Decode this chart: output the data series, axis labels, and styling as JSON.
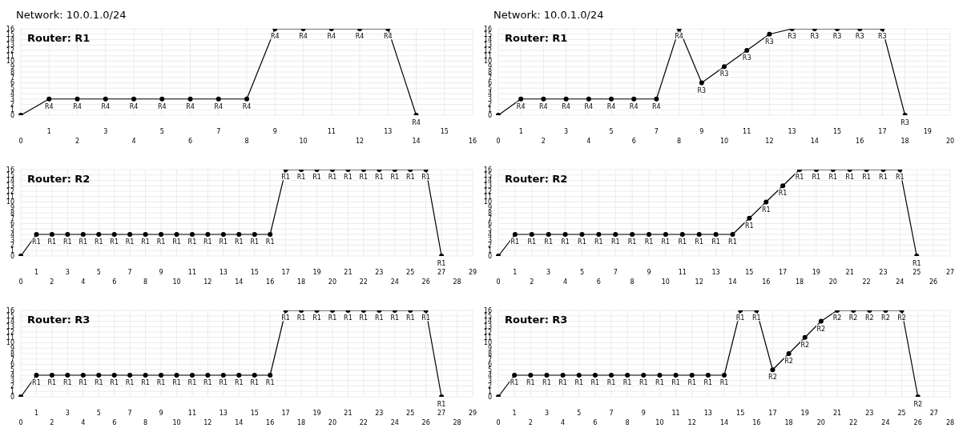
{
  "chart_data": [
    {
      "type": "line",
      "title": "Network: 10.0.1.0/24",
      "subtitle": "Router: R1",
      "grid": true,
      "marker": "circle",
      "ylim": [
        0,
        16
      ],
      "yticks": [
        0,
        1,
        2,
        3,
        4,
        5,
        6,
        7,
        8,
        9,
        10,
        11,
        12,
        13,
        14,
        15,
        16
      ],
      "categories": [
        "0",
        "1",
        "2",
        "3",
        "4",
        "5",
        "6",
        "7",
        "8",
        "9",
        "10",
        "11",
        "12",
        "13",
        "14",
        "15",
        "16"
      ],
      "series": [
        {
          "color": "#000000",
          "values": [
            0,
            3,
            3,
            3,
            3,
            3,
            3,
            3,
            3,
            16,
            16,
            16,
            16,
            16,
            0,
            null,
            null
          ],
          "value_labels": [
            null,
            "R4",
            "R4",
            "R4",
            "R4",
            "R4",
            "R4",
            "R4",
            "R4",
            "R4",
            "R4",
            "R4",
            "R4",
            "R4",
            "R4",
            null,
            null
          ]
        }
      ]
    },
    {
      "type": "line",
      "title": "Network: 10.0.1.0/24",
      "subtitle": "Router: R1",
      "grid": true,
      "marker": "circle",
      "ylim": [
        0,
        16
      ],
      "yticks": [
        0,
        1,
        2,
        3,
        4,
        5,
        6,
        7,
        8,
        9,
        10,
        11,
        12,
        13,
        14,
        15,
        16
      ],
      "categories": [
        "0",
        "1",
        "2",
        "3",
        "4",
        "5",
        "6",
        "7",
        "8",
        "9",
        "10",
        "11",
        "12",
        "13",
        "14",
        "15",
        "16",
        "17",
        "18",
        "19",
        "20"
      ],
      "series": [
        {
          "color": "#000000",
          "values": [
            0,
            3,
            3,
            3,
            3,
            3,
            3,
            3,
            16,
            6,
            9,
            12,
            15,
            16,
            16,
            16,
            16,
            16,
            0,
            null,
            null
          ],
          "value_labels": [
            null,
            "R4",
            "R4",
            "R4",
            "R4",
            "R4",
            "R4",
            "R4",
            "R4",
            "R3",
            "R3",
            "R3",
            "R3",
            "R3",
            "R3",
            "R3",
            "R3",
            "R3",
            "R3",
            null,
            null
          ]
        }
      ]
    },
    {
      "type": "line",
      "subtitle": "Router: R2",
      "grid": true,
      "marker": "circle",
      "ylim": [
        0,
        16
      ],
      "yticks": [
        0,
        1,
        2,
        3,
        4,
        5,
        6,
        7,
        8,
        9,
        10,
        11,
        12,
        13,
        14,
        15,
        16
      ],
      "categories": [
        "0",
        "1",
        "2",
        "3",
        "4",
        "5",
        "6",
        "7",
        "8",
        "9",
        "10",
        "11",
        "12",
        "13",
        "14",
        "15",
        "16",
        "17",
        "18",
        "19",
        "20",
        "21",
        "22",
        "23",
        "24",
        "25",
        "26",
        "27",
        "28",
        "29"
      ],
      "series": [
        {
          "color": "#000000",
          "values": [
            0,
            4,
            4,
            4,
            4,
            4,
            4,
            4,
            4,
            4,
            4,
            4,
            4,
            4,
            4,
            4,
            4,
            16,
            16,
            16,
            16,
            16,
            16,
            16,
            16,
            16,
            16,
            0,
            null,
            null
          ],
          "value_labels": [
            null,
            "R1",
            "R1",
            "R1",
            "R1",
            "R1",
            "R1",
            "R1",
            "R1",
            "R1",
            "R1",
            "R1",
            "R1",
            "R1",
            "R1",
            "R1",
            "R1",
            "R1",
            "R1",
            "R1",
            "R1",
            "R1",
            "R1",
            "R1",
            "R1",
            "R1",
            "R1",
            "R1",
            null,
            null
          ]
        }
      ]
    },
    {
      "type": "line",
      "subtitle": "Router: R2",
      "grid": true,
      "marker": "circle",
      "ylim": [
        0,
        16
      ],
      "yticks": [
        0,
        1,
        2,
        3,
        4,
        5,
        6,
        7,
        8,
        9,
        10,
        11,
        12,
        13,
        14,
        15,
        16
      ],
      "categories": [
        "0",
        "1",
        "2",
        "3",
        "4",
        "5",
        "6",
        "7",
        "8",
        "9",
        "10",
        "11",
        "12",
        "13",
        "14",
        "15",
        "16",
        "17",
        "18",
        "19",
        "20",
        "21",
        "22",
        "23",
        "24",
        "25",
        "26",
        "27"
      ],
      "series": [
        {
          "color": "#000000",
          "values": [
            0,
            4,
            4,
            4,
            4,
            4,
            4,
            4,
            4,
            4,
            4,
            4,
            4,
            4,
            4,
            7,
            10,
            13,
            16,
            16,
            16,
            16,
            16,
            16,
            16,
            0,
            null,
            null
          ],
          "value_labels": [
            null,
            "R1",
            "R1",
            "R1",
            "R1",
            "R1",
            "R1",
            "R1",
            "R1",
            "R1",
            "R1",
            "R1",
            "R1",
            "R1",
            "R1",
            "R1",
            "R1",
            "R1",
            "R1",
            "R1",
            "R1",
            "R1",
            "R1",
            "R1",
            "R1",
            "R1",
            null,
            null
          ]
        }
      ]
    },
    {
      "type": "line",
      "subtitle": "Router: R3",
      "grid": true,
      "marker": "circle",
      "ylim": [
        0,
        16
      ],
      "yticks": [
        0,
        1,
        2,
        3,
        4,
        5,
        6,
        7,
        8,
        9,
        10,
        11,
        12,
        13,
        14,
        15,
        16
      ],
      "categories": [
        "0",
        "1",
        "2",
        "3",
        "4",
        "5",
        "6",
        "7",
        "8",
        "9",
        "10",
        "11",
        "12",
        "13",
        "14",
        "15",
        "16",
        "17",
        "18",
        "19",
        "20",
        "21",
        "22",
        "23",
        "24",
        "25",
        "26",
        "27",
        "28",
        "29"
      ],
      "series": [
        {
          "color": "#000000",
          "values": [
            0,
            4,
            4,
            4,
            4,
            4,
            4,
            4,
            4,
            4,
            4,
            4,
            4,
            4,
            4,
            4,
            4,
            16,
            16,
            16,
            16,
            16,
            16,
            16,
            16,
            16,
            16,
            0,
            null,
            null
          ],
          "value_labels": [
            null,
            "R1",
            "R1",
            "R1",
            "R1",
            "R1",
            "R1",
            "R1",
            "R1",
            "R1",
            "R1",
            "R1",
            "R1",
            "R1",
            "R1",
            "R1",
            "R1",
            "R1",
            "R1",
            "R1",
            "R1",
            "R1",
            "R1",
            "R1",
            "R1",
            "R1",
            "R1",
            "R1",
            null,
            null
          ]
        }
      ]
    },
    {
      "type": "line",
      "subtitle": "Router: R3",
      "grid": true,
      "marker": "circle",
      "ylim": [
        0,
        16
      ],
      "yticks": [
        0,
        1,
        2,
        3,
        4,
        5,
        6,
        7,
        8,
        9,
        10,
        11,
        12,
        13,
        14,
        15,
        16
      ],
      "categories": [
        "0",
        "1",
        "2",
        "3",
        "4",
        "5",
        "6",
        "7",
        "8",
        "9",
        "10",
        "11",
        "12",
        "13",
        "14",
        "15",
        "16",
        "17",
        "18",
        "19",
        "20",
        "21",
        "22",
        "23",
        "24",
        "25",
        "26",
        "27",
        "28"
      ],
      "series": [
        {
          "color": "#000000",
          "values": [
            0,
            4,
            4,
            4,
            4,
            4,
            4,
            4,
            4,
            4,
            4,
            4,
            4,
            4,
            4,
            16,
            16,
            5,
            8,
            11,
            14,
            16,
            16,
            16,
            16,
            16,
            0,
            null,
            null
          ],
          "value_labels": [
            null,
            "R1",
            "R1",
            "R1",
            "R1",
            "R1",
            "R1",
            "R1",
            "R1",
            "R1",
            "R1",
            "R1",
            "R1",
            "R1",
            "R1",
            "R1",
            "R1",
            "R2",
            "R2",
            "R2",
            "R2",
            "R2",
            "R2",
            "R2",
            "R2",
            "R2",
            "R2",
            null,
            null
          ]
        }
      ]
    }
  ]
}
